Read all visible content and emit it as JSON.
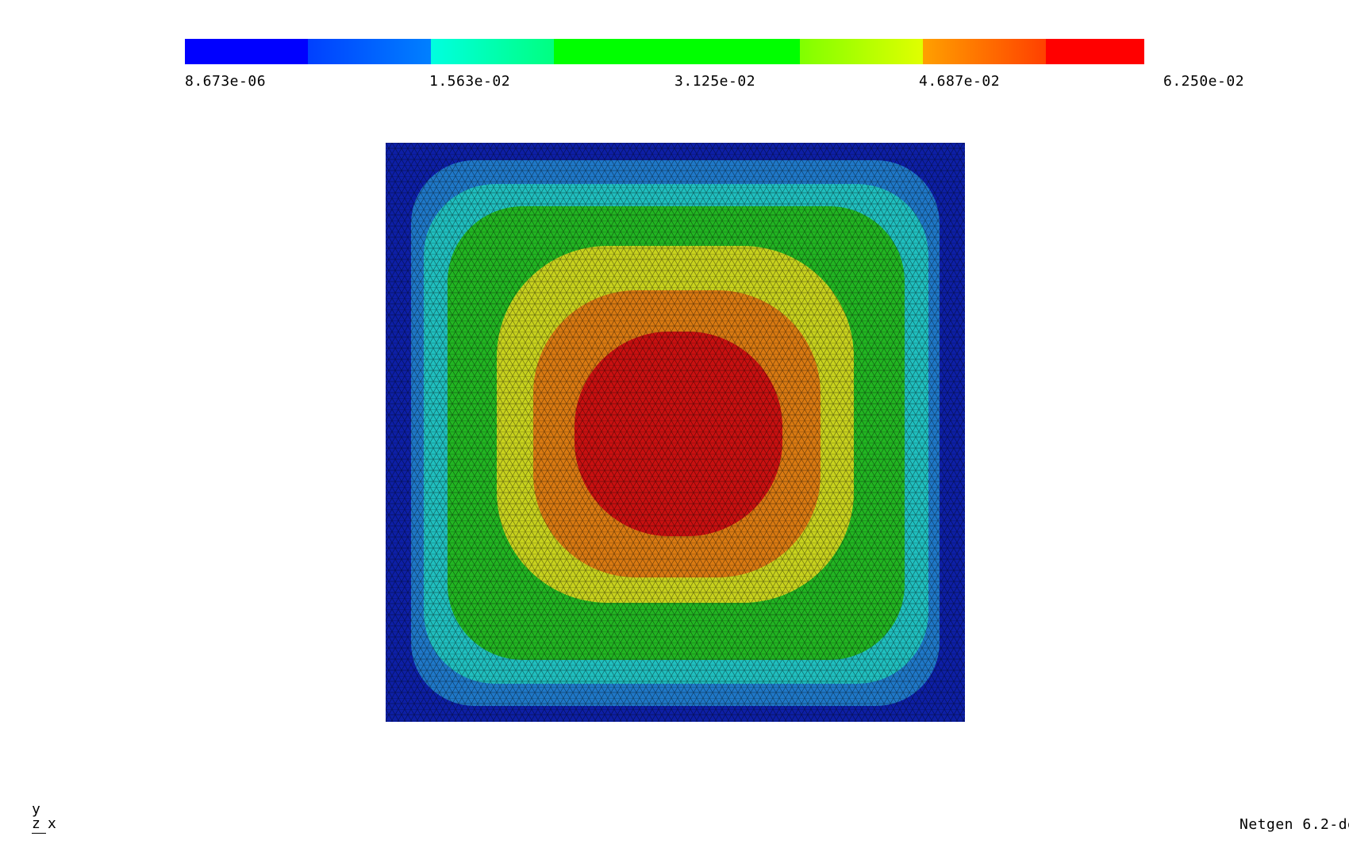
{
  "legend": {
    "labels": [
      "8.673e-06",
      "1.563e-02",
      "3.125e-02",
      "4.687e-02",
      "6.250e-02"
    ],
    "segments": [
      {
        "from": "#0000ff",
        "to": "#0000ff",
        "w": 1
      },
      {
        "from": "#0040ff",
        "to": "#0080ff",
        "w": 1
      },
      {
        "from": "#00ffe0",
        "to": "#00ff80",
        "w": 1
      },
      {
        "from": "#00ff00",
        "to": "#00ff00",
        "w": 2
      },
      {
        "from": "#80ff00",
        "to": "#e0ff00",
        "w": 1
      },
      {
        "from": "#ffa000",
        "to": "#ff4000",
        "w": 1
      },
      {
        "from": "#ff0000",
        "to": "#ff0000",
        "w": 0.8
      }
    ]
  },
  "plot": {
    "bands": [
      {
        "color": "#0d1fa6"
      },
      {
        "color": "#1f78c8"
      },
      {
        "color": "#20bfbf"
      },
      {
        "color": "#22b522"
      },
      {
        "color": "#c8d21e"
      },
      {
        "color": "#d97a12"
      },
      {
        "color": "#c81010"
      }
    ]
  },
  "triad": {
    "y": "y",
    "z": "z",
    "x": "x"
  },
  "footer": {
    "version": "Netgen 6.2-de"
  }
}
